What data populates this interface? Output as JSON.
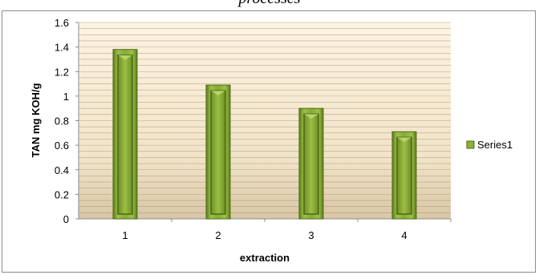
{
  "chart_data": {
    "type": "bar",
    "title_fragment": "processes",
    "categories": [
      "1",
      "2",
      "3",
      "4"
    ],
    "series": [
      {
        "name": "Series1",
        "values": [
          1.38,
          1.09,
          0.9,
          0.71
        ]
      }
    ],
    "xlabel": "extraction",
    "ylabel": "TAN mg KOH/g",
    "ylim": [
      0,
      1.6
    ],
    "yticks": [
      "0",
      "0.2",
      "0.4",
      "0.6",
      "0.8",
      "1",
      "1.2",
      "1.4",
      "1.6"
    ],
    "grid": true,
    "legend_position": "right",
    "colors": {
      "bar_fill": "#8db03a",
      "bar_dark": "#4f6b14",
      "bar_light": "#c4dc7a",
      "plot_bg_top": "#fdf3e1",
      "plot_bg_bottom": "#d9c6a5",
      "grid": "#9a8f7d"
    }
  }
}
